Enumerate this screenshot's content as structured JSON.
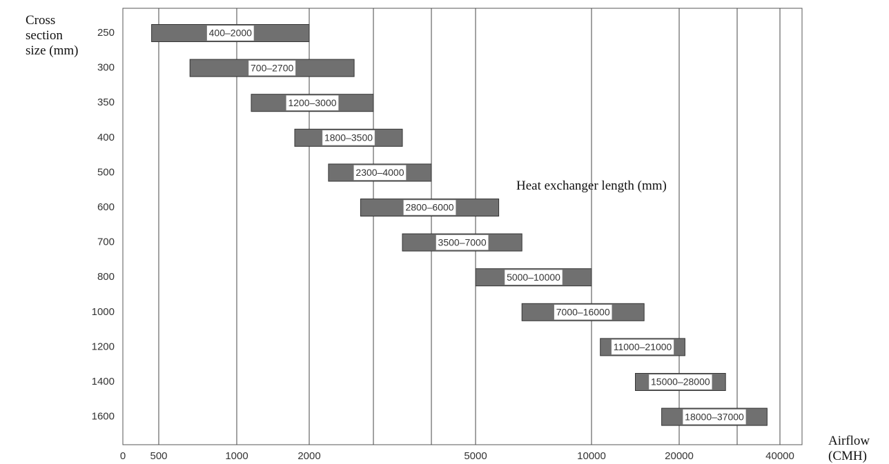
{
  "chart_data": {
    "type": "range_bar",
    "ylabel": "Cross section size (mm)",
    "xlabel": "Airflow (CMH)",
    "annotation": "Heat exchanger length (mm)",
    "categories": [
      "250",
      "300",
      "350",
      "400",
      "500",
      "600",
      "700",
      "800",
      "1000",
      "1200",
      "1400",
      "1600"
    ],
    "low": [
      400,
      700,
      1200,
      1800,
      2300,
      2800,
      3500,
      5000,
      7000,
      11000,
      15000,
      18000
    ],
    "high": [
      2000,
      2700,
      3000,
      3500,
      4000,
      6000,
      7000,
      10000,
      16000,
      21000,
      28000,
      37000
    ],
    "value_labels": [
      "400–2000",
      "700–2700",
      "1200–3000",
      "1800–3500",
      "2300–4000",
      "2800–6000",
      "3500–7000",
      "5000–10000",
      "7000–16000",
      "11000–21000",
      "15000–28000",
      "18000–37000"
    ],
    "color": "#707070",
    "xlim": [
      0,
      40000
    ],
    "xticks": [
      0,
      500,
      1000,
      2000,
      5000,
      10000,
      20000,
      40000
    ],
    "minor_gridlines": [
      3000,
      4000,
      30000
    ],
    "grid": true
  }
}
